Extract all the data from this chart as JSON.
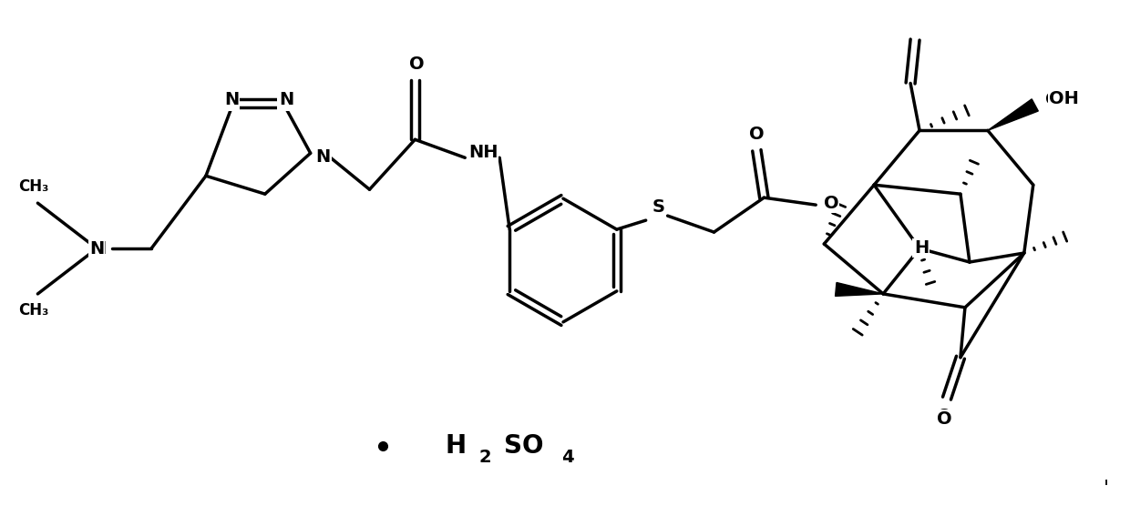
{
  "bg_color": "#ffffff",
  "line_color": "#000000",
  "lw": 2.5,
  "fig_width": 12.4,
  "fig_height": 5.78,
  "dpi": 100,
  "xlim": [
    0,
    12.4
  ],
  "ylim": [
    0,
    5.78
  ]
}
